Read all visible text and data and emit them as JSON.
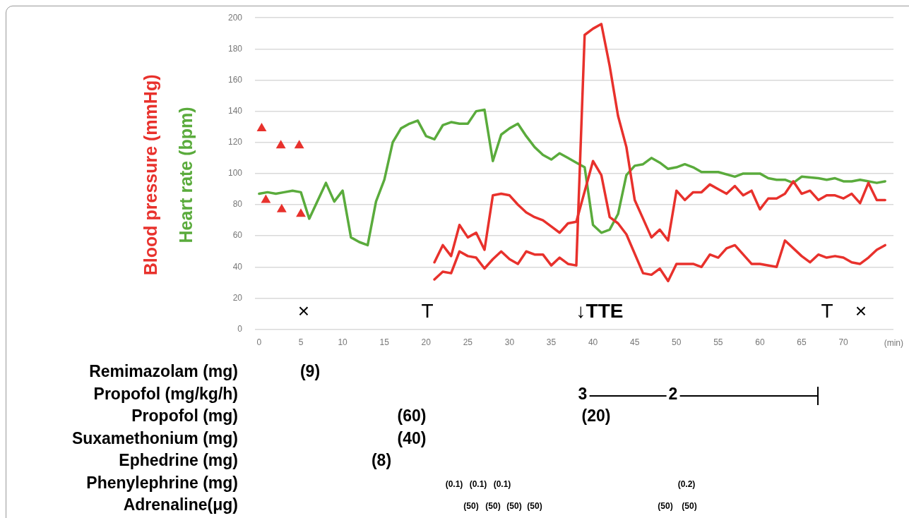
{
  "chart_data": [
    {
      "type": "line",
      "xlim": [
        -0.5,
        76
      ],
      "xticks": [
        0,
        5,
        10,
        15,
        20,
        25,
        30,
        35,
        40,
        45,
        50,
        55,
        60,
        65,
        70
      ],
      "xlabel": "(min)",
      "ylim": [
        0,
        200
      ],
      "yticks": [
        0,
        20,
        40,
        60,
        80,
        100,
        120,
        140,
        160,
        180,
        200
      ],
      "grid": "y",
      "legend": false,
      "marker": "none",
      "series": [
        {
          "name": "Blood pressure (mmHg)",
          "color": "#e8312c",
          "x": [
            21,
            22,
            23,
            24,
            25,
            26,
            27,
            28,
            29,
            30,
            31,
            32,
            33,
            34,
            35,
            36,
            37,
            38,
            40,
            41,
            42,
            43,
            44,
            46,
            47,
            48,
            49,
            50,
            52,
            53,
            54,
            55,
            56,
            57,
            59,
            60,
            62,
            63,
            65,
            66,
            67,
            68,
            69,
            70,
            71,
            72,
            73,
            74,
            75
          ],
          "values": [
            43,
            54,
            47,
            67,
            59,
            62,
            51,
            86,
            87,
            86,
            80,
            75,
            72,
            70,
            66,
            62,
            68,
            69,
            108,
            99,
            72,
            68,
            61,
            36,
            35,
            39,
            31,
            42,
            42,
            40,
            48,
            46,
            52,
            54,
            42,
            42,
            40,
            57,
            47,
            43,
            48,
            46,
            47,
            46,
            43,
            42,
            46,
            51,
            54
          ]
        },
        {
          "color": "#e8312c",
          "x": [
            21,
            22,
            23,
            24,
            25,
            26,
            27,
            28,
            29,
            30,
            31,
            32,
            33,
            34,
            35,
            36,
            37,
            38,
            39,
            40,
            41,
            42,
            43,
            44,
            45,
            46,
            47,
            48,
            49,
            50,
            51,
            52,
            53,
            54,
            55,
            56,
            57,
            58,
            59,
            60,
            61,
            62,
            63,
            64,
            65,
            66,
            67,
            68,
            69,
            70,
            71,
            72,
            73,
            74,
            75
          ],
          "values": [
            32,
            37,
            36,
            50,
            47,
            46,
            39,
            45,
            50,
            45,
            42,
            50,
            48,
            48,
            41,
            46,
            42,
            41,
            189,
            193,
            196,
            169,
            137,
            117,
            83,
            71,
            59,
            64,
            57,
            89,
            83,
            88,
            88,
            93,
            90,
            87,
            92,
            86,
            89,
            77,
            84,
            84,
            87,
            95,
            87,
            89,
            83,
            86,
            86,
            84,
            87,
            81,
            94,
            83,
            83
          ]
        },
        {
          "name": "Heart rate (bpm)",
          "color": "#5aab3c",
          "x": [
            0,
            1,
            2,
            3,
            4,
            5,
            6,
            8,
            9,
            10,
            11,
            12,
            13,
            14,
            15,
            16,
            17,
            18,
            19,
            20,
            21,
            22,
            23,
            24,
            25,
            26,
            27,
            28,
            29,
            30,
            31,
            32,
            33,
            34,
            35,
            36,
            37,
            38,
            39,
            40,
            41,
            42,
            43,
            44,
            45,
            46,
            47,
            48,
            49,
            50,
            51,
            52,
            53,
            54,
            55,
            57,
            58,
            60,
            61,
            62,
            63,
            64,
            65,
            67,
            68,
            69,
            70,
            71,
            72,
            74,
            75
          ],
          "values": [
            87,
            88,
            87,
            88,
            89,
            88,
            71,
            94,
            82,
            89,
            59,
            56,
            54,
            82,
            96,
            120,
            129,
            132,
            134,
            124,
            122,
            131,
            133,
            132,
            132,
            140,
            141,
            108,
            125,
            129,
            132,
            124,
            117,
            112,
            109,
            113,
            110,
            107,
            104,
            67,
            62,
            64,
            74,
            99,
            105,
            106,
            110,
            107,
            103,
            104,
            106,
            104,
            101,
            101,
            101,
            98,
            100,
            100,
            97,
            96,
            96,
            94,
            98,
            97,
            96,
            97,
            95,
            95,
            96,
            94,
            95
          ]
        },
        {
          "type": "scatter",
          "marker": "triangle",
          "color": "#e8312c",
          "x": [
            0.3,
            2.6,
            4.8
          ],
          "values": [
            129,
            118,
            118
          ]
        },
        {
          "type": "scatter",
          "marker": "triangle",
          "color": "#e8312c",
          "x": [
            0.8,
            2.7,
            5
          ],
          "values": [
            83,
            77,
            74
          ]
        }
      ],
      "annotations": [
        "×",
        "T",
        "↓TTE",
        "T",
        "×"
      ]
    },
    {
      "type": "other",
      "y_categories": [
        "Remimazolam (mg)",
        "Propofol (mg/kg/h)",
        "Propofol (mg)",
        "Suxamethonium (mg)",
        "Ephedrine (mg)",
        "Phenylephrine (mg)",
        "Adrenaline(μg)"
      ],
      "annotations": [
        {
          "text": "(9)",
          "y": "Remimazolam (mg)"
        },
        {
          "text": "3",
          "y": "Propofol (mg/kg/h)"
        },
        {
          "text": "2",
          "y": "Propofol (mg/kg/h)"
        },
        {
          "text": "(60)",
          "y": "Propofol (mg)"
        },
        {
          "text": "(20)",
          "y": "Propofol (mg)"
        },
        {
          "text": "(40)",
          "y": "Suxamethonium (mg)"
        },
        {
          "text": "(8)",
          "y": "Ephedrine (mg)"
        },
        {
          "text": "(0.1)",
          "y": "Phenylephrine (mg)"
        },
        {
          "text": "(0.1)",
          "y": "Phenylephrine (mg)"
        },
        {
          "text": "(0.1)",
          "y": "Phenylephrine (mg)"
        },
        {
          "text": "(0.2)",
          "y": "Phenylephrine (mg)"
        },
        {
          "text": "(50)",
          "y": "Adrenaline(μg)"
        },
        {
          "text": "(50)",
          "y": "Adrenaline(μg)"
        },
        {
          "text": "(50)",
          "y": "Adrenaline(μg)"
        },
        {
          "text": "(50)",
          "y": "Adrenaline(μg)"
        },
        {
          "text": "(50)",
          "y": "Adrenaline(μg)"
        },
        {
          "text": "(50)",
          "y": "Adrenaline(μg)"
        }
      ]
    }
  ]
}
